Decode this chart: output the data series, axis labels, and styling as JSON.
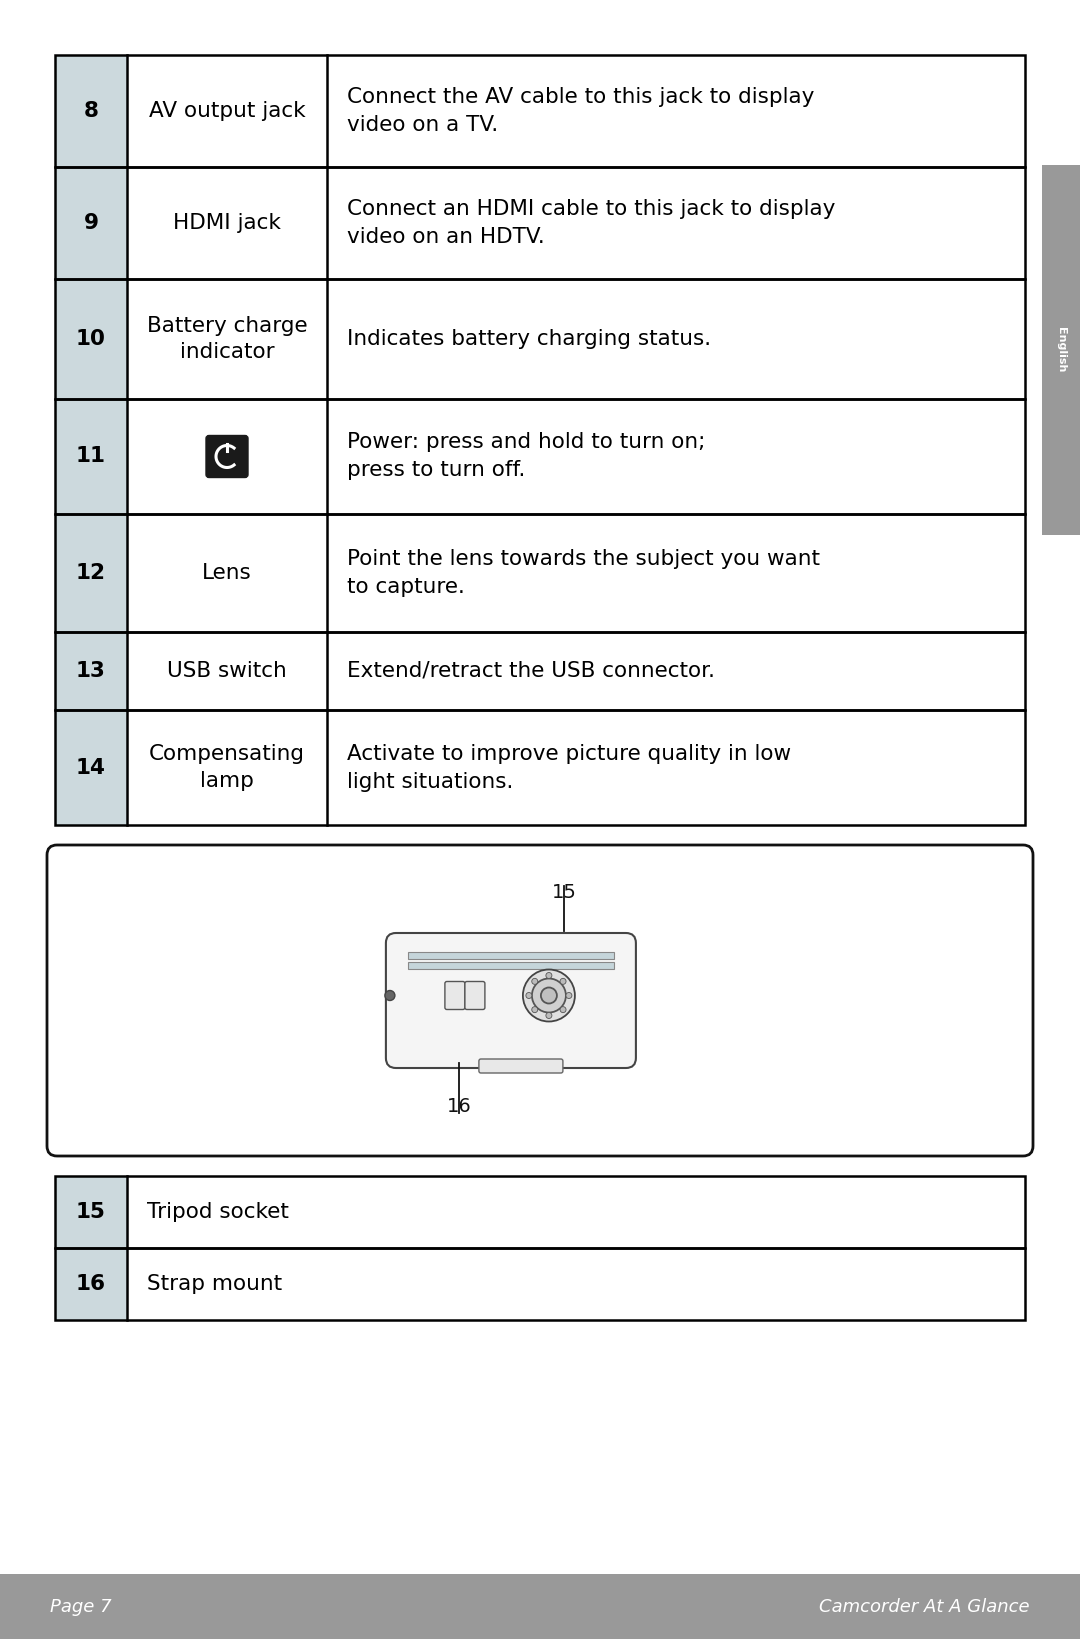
{
  "page_bg": "#ffffff",
  "footer_bg": "#999999",
  "footer_left": "Page 7",
  "footer_right": "Camcorder At A Glance",
  "sidebar_color": "#999999",
  "sidebar_text": "English",
  "num_col_bg": "#ccd9dd",
  "table_border": "#000000",
  "rows": [
    {
      "num": "8",
      "label": "AV output jack",
      "desc": "Connect the AV cable to this jack to display\nvideo on a TV."
    },
    {
      "num": "9",
      "label": "HDMI jack",
      "desc": "Connect an HDMI cable to this jack to display\nvideo on an HDTV."
    },
    {
      "num": "10",
      "label": "Battery charge\nindicator",
      "desc": "Indicates battery charging status."
    },
    {
      "num": "11",
      "label": "",
      "desc": "Power: press and hold to turn on;\npress to turn off.",
      "is_icon": true
    },
    {
      "num": "12",
      "label": "Lens",
      "desc": "Point the lens towards the subject you want\nto capture."
    },
    {
      "num": "13",
      "label": "USB switch",
      "desc": "Extend/retract the USB connector."
    },
    {
      "num": "14",
      "label": "Compensating\nlamp",
      "desc": "Activate to improve picture quality in low\nlight situations."
    }
  ],
  "rows2": [
    {
      "num": "15",
      "label": "Tripod socket"
    },
    {
      "num": "16",
      "label": "Strap mount"
    }
  ]
}
